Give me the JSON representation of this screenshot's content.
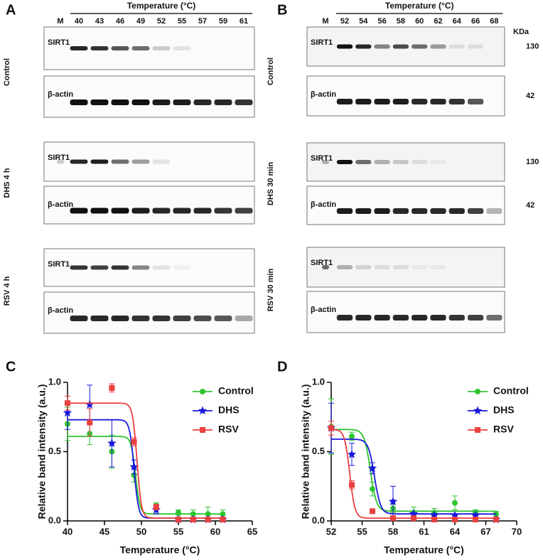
{
  "blots": [
    {
      "letter": "A",
      "header": "Temperature (°C)",
      "lanes": [
        "M",
        "40",
        "43",
        "46",
        "49",
        "52",
        "55",
        "57",
        "59",
        "61"
      ],
      "groups": [
        {
          "label": "Control",
          "rows": [
            {
              "label": "SIRT1"
            },
            {
              "label": "β-actin"
            }
          ]
        },
        {
          "label": "DHS 4 h",
          "rows": [
            {
              "label": "SIRT1"
            },
            {
              "label": "β-actin"
            }
          ]
        },
        {
          "label": "RSV 4 h",
          "rows": [
            {
              "label": "SIRT1"
            },
            {
              "label": "β-actin"
            }
          ]
        }
      ]
    },
    {
      "letter": "B",
      "header": "Temperature (°C)",
      "lanes": [
        "M",
        "52",
        "54",
        "56",
        "58",
        "60",
        "62",
        "64",
        "66",
        "68"
      ],
      "unit": "KDa",
      "groups": [
        {
          "label": "Control",
          "rows": [
            {
              "label": "SIRT1",
              "marker": "130"
            },
            {
              "label": "β-actin",
              "marker": "42"
            }
          ]
        },
        {
          "label": "DHS 30 min",
          "rows": [
            {
              "label": "SIRT1",
              "marker": "130"
            },
            {
              "label": "β-actin",
              "marker": "42"
            }
          ]
        },
        {
          "label": "RSV 30 min",
          "rows": [
            {
              "label": "SIRT1"
            },
            {
              "label": "β-actin"
            }
          ]
        }
      ]
    }
  ],
  "chart_data": [
    {
      "type": "scatter",
      "letter": "C",
      "xlabel": "Temperature (°C)",
      "ylabel": "Relative band intensity (a.u.)",
      "xlim": [
        40,
        65
      ],
      "xticks": [
        40,
        45,
        50,
        55,
        60,
        65
      ],
      "ylim": [
        0,
        1
      ],
      "yticks": [
        {
          "value": 0,
          "label": "0.0"
        },
        0.5,
        {
          "value": 1,
          "label": "1.0"
        }
      ],
      "x": [
        40,
        43,
        46,
        49,
        52,
        55,
        57,
        59,
        61
      ],
      "series": [
        {
          "name": "Control",
          "color": "#2fc42f",
          "marker": "circle",
          "values": [
            0.7,
            0.63,
            0.5,
            0.33,
            0.11,
            0.06,
            0.05,
            0.05,
            0.05
          ],
          "errors": [
            0.12,
            0.08,
            0.12,
            0.05,
            0.02,
            0.02,
            0.03,
            0.05,
            0.03
          ],
          "fit": {
            "top": 0.61,
            "bottom": 0.05,
            "tm": 49.2,
            "slope": 0.3
          }
        },
        {
          "name": "DHS",
          "color": "#1a1adc",
          "marker": "star",
          "values": [
            0.78,
            0.84,
            0.56,
            0.39,
            0.08,
            0.01,
            0.01,
            0.01,
            0.01
          ],
          "errors": [
            0.12,
            0.14,
            0.17,
            0.05,
            0.03,
            0.01,
            0.01,
            0.01,
            0.01
          ],
          "fit": {
            "top": 0.73,
            "bottom": 0.02,
            "tm": 49,
            "slope": 0.3
          }
        },
        {
          "name": "RSV",
          "color": "#ea4040",
          "marker": "square",
          "values": [
            0.85,
            0.71,
            0.96,
            0.57,
            0.1,
            0.01,
            0.01,
            0.01,
            0.01
          ],
          "errors": [
            0.05,
            0.1,
            0.03,
            0.03,
            0.02,
            0.01,
            0.01,
            0.01,
            0.01
          ],
          "fit": {
            "top": 0.85,
            "bottom": 0.02,
            "tm": 49.4,
            "slope": 0.3
          }
        }
      ]
    },
    {
      "type": "scatter",
      "letter": "D",
      "xlabel": "Temperature (°C)",
      "ylabel": "Relative band intensity (a.u.)",
      "xlim": [
        52,
        70
      ],
      "xticks": [
        52,
        55,
        58,
        61,
        64,
        67,
        70
      ],
      "ylim": [
        0,
        1
      ],
      "yticks": [
        {
          "value": 0,
          "label": "0.0"
        },
        0.5,
        {
          "value": 1,
          "label": "1.0"
        }
      ],
      "x": [
        52,
        54,
        56,
        58,
        60,
        62,
        64,
        66,
        68
      ],
      "series": [
        {
          "name": "Control",
          "color": "#2fc42f",
          "marker": "circle",
          "values": [
            0.68,
            0.61,
            0.23,
            0.09,
            0.06,
            0.06,
            0.13,
            0.06,
            0.05
          ],
          "errors": [
            0.2,
            0.03,
            0.05,
            0.03,
            0.04,
            0.03,
            0.05,
            0.02,
            0.02
          ],
          "fit": {
            "top": 0.66,
            "bottom": 0.07,
            "tm": 55.8,
            "slope": 0.3
          }
        },
        {
          "name": "DHS",
          "color": "#1a1adc",
          "marker": "star",
          "values": [
            0.67,
            0.48,
            0.38,
            0.14,
            0.05,
            0.04,
            0.04,
            0.04,
            0.01
          ],
          "errors": [
            0.18,
            0.08,
            0.04,
            0.11,
            0.01,
            0.01,
            0.01,
            0.01,
            0.01
          ],
          "fit": {
            "top": 0.59,
            "bottom": 0.05,
            "tm": 56.2,
            "slope": 0.3
          }
        },
        {
          "name": "RSV",
          "color": "#ea4040",
          "marker": "square",
          "values": [
            0.67,
            0.26,
            0.07,
            0.02,
            0.02,
            0.01,
            0.01,
            0.01,
            0.01
          ],
          "errors": [
            0.05,
            0.03,
            0.01,
            0.01,
            0.01,
            0.01,
            0.01,
            0.01,
            0.01
          ],
          "fit": {
            "top": 0.66,
            "bottom": 0.02,
            "tm": 53.8,
            "slope": 0.25
          }
        }
      ]
    }
  ]
}
